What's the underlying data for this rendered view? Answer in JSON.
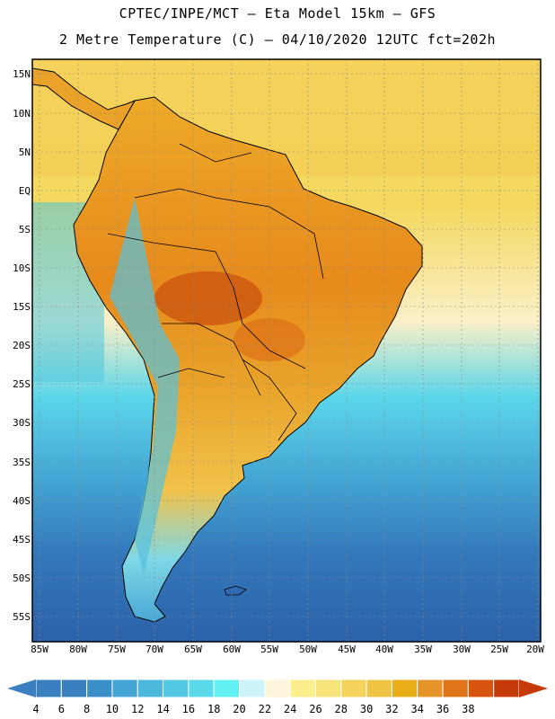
{
  "title_line1": "CPTEC/INPE/MCT –  Eta Model 15km – GFS",
  "title_line2": "2 Metre Temperature (C) – 04/10/2020 12UTC fct=202h",
  "lat_labels": [
    "15N",
    "10N",
    "5N",
    "EQ",
    "5S",
    "10S",
    "15S",
    "20S",
    "25S",
    "30S",
    "35S",
    "40S",
    "45S",
    "50S",
    "55S"
  ],
  "lon_labels": [
    "85W",
    "80W",
    "75W",
    "70W",
    "65W",
    "60W",
    "55W",
    "50W",
    "45W",
    "40W",
    "35W",
    "30W",
    "25W",
    "20W"
  ],
  "colorbar": {
    "labels": [
      "4",
      "6",
      "8",
      "10",
      "12",
      "14",
      "16",
      "18",
      "20",
      "22",
      "24",
      "26",
      "28",
      "30",
      "32",
      "34",
      "36",
      "38"
    ],
    "colors": [
      "#3a7fc0",
      "#3a7fc0",
      "#3a8fc8",
      "#44a4d4",
      "#4cb8dc",
      "#52c8e2",
      "#5ad9ea",
      "#62f0f2",
      "#cdf4fa",
      "#fdf6dc",
      "#fbef8c",
      "#f8e37a",
      "#f3d35c",
      "#eec445",
      "#e9ae18",
      "#e6942a",
      "#e07418",
      "#d9540e",
      "#c53a08"
    ],
    "left_arrow_color": "#3a7fc0",
    "right_arrow_color": "#c53a08"
  }
}
